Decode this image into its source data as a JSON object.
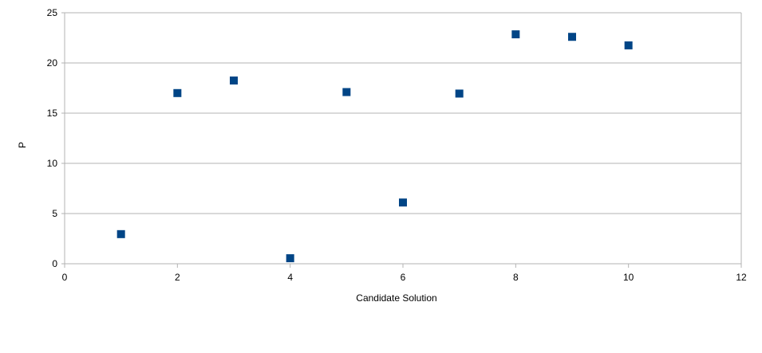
{
  "chart_data": {
    "type": "scatter",
    "title": "",
    "xlabel": "Candidate Solution",
    "ylabel": "P",
    "xlim": [
      0,
      12
    ],
    "ylim": [
      0,
      25
    ],
    "x_ticks": [
      0,
      2,
      4,
      6,
      8,
      10,
      12
    ],
    "y_ticks": [
      0,
      5,
      10,
      15,
      20,
      25
    ],
    "grid": "horizontal",
    "legend": "none",
    "marker": "square",
    "colors": {
      "marker": "#004586",
      "grid": "#b3b3b3",
      "axis": "#b3b3b3"
    },
    "series": [
      {
        "x": [
          1,
          2,
          3,
          4,
          5,
          6,
          7,
          8,
          9,
          10
        ],
        "y": [
          2.95,
          17.0,
          18.25,
          0.55,
          17.1,
          6.1,
          16.95,
          22.85,
          22.6,
          21.75
        ]
      }
    ]
  }
}
